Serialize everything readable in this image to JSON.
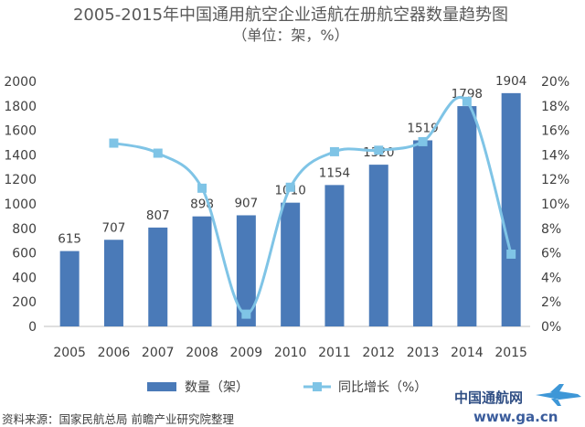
{
  "chart_data": {
    "type": "bar",
    "title": "2005-2015年中国通用航空企业适航在册航空器数量趋势图",
    "subtitle": "（单位：架，%）",
    "categories": [
      "2005",
      "2006",
      "2007",
      "2008",
      "2009",
      "2010",
      "2011",
      "2012",
      "2013",
      "2014",
      "2015"
    ],
    "series": [
      {
        "name": "数量（架）",
        "type": "bar",
        "axis": "left",
        "values": [
          615,
          707,
          807,
          898,
          907,
          1010,
          1154,
          1320,
          1519,
          1798,
          1904
        ],
        "color": "#4a7ab8"
      },
      {
        "name": "同比增长（%）",
        "type": "line",
        "axis": "right",
        "values": [
          null,
          14.96,
          14.14,
          11.28,
          1.0,
          11.36,
          14.26,
          14.38,
          15.08,
          18.37,
          5.9
        ],
        "color": "#7fc4e6"
      }
    ],
    "y_left": {
      "min": 0,
      "max": 2000,
      "step": 200,
      "tick_labels": [
        "0",
        "200",
        "400",
        "600",
        "800",
        "1000",
        "1200",
        "1400",
        "1600",
        "1800",
        "2000"
      ]
    },
    "y_right": {
      "min": 0,
      "max": 20,
      "step": 2,
      "tick_labels": [
        "0%",
        "2%",
        "4%",
        "6%",
        "8%",
        "10%",
        "12%",
        "14%",
        "16%",
        "18%",
        "20%"
      ]
    },
    "grid": false,
    "legend_position": "bottom"
  },
  "source": "资料来源：国家民航总局 前瞻产业研究院整理",
  "watermark": {
    "name": "中国通航网",
    "url": "www.ga.cn",
    "text_color": "#1e3f7a",
    "accent_color": "#2e8fd4"
  }
}
